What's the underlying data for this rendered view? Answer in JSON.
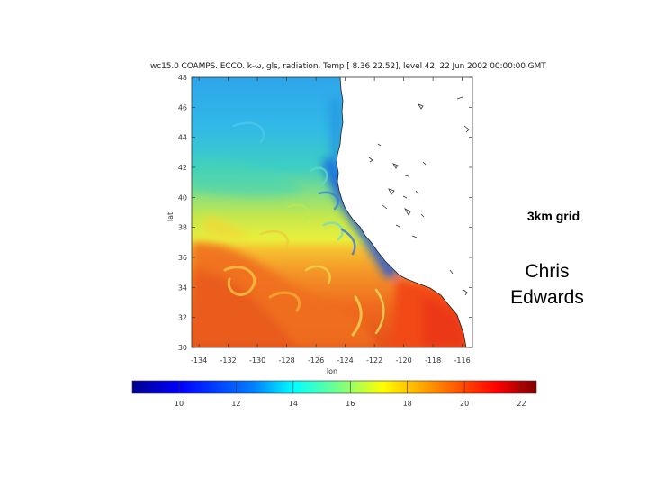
{
  "plot": {
    "title": "wc15.0 COAMPS. ECCO. k-ω, gls, radiation, Temp [ 8.36 22.52], level 42, 22 Jun 2002 00:00:00 GMT",
    "ylabel": "lat",
    "xlabel": "lon",
    "y_ticks": [
      "48",
      "46",
      "44",
      "42",
      "40",
      "38",
      "36",
      "34",
      "32",
      "30"
    ],
    "x_ticks": [
      "-134",
      "-132",
      "-130",
      "-128",
      "-126",
      "-124",
      "-122",
      "-120",
      "-118",
      "-116"
    ],
    "lat_range": [
      30,
      48
    ],
    "lon_range": [
      -134.5,
      -115.3
    ]
  },
  "colorbar": {
    "ticks": [
      "10",
      "12",
      "14",
      "16",
      "18",
      "20",
      "22"
    ],
    "range": [
      8.36,
      22.52
    ],
    "colors": [
      "#00008f",
      "#0000ff",
      "#0080ff",
      "#00ffff",
      "#80ff80",
      "#ffff00",
      "#ff8000",
      "#ff0000",
      "#800000"
    ]
  },
  "slide": {
    "grid_label": "3km grid",
    "author_first": "Chris",
    "author_last": "Edwards"
  }
}
